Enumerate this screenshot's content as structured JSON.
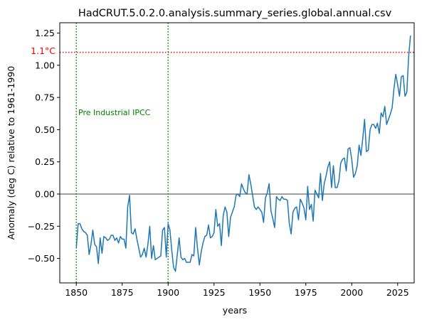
{
  "chart_data": {
    "type": "line",
    "title": "HadCRUT.5.0.2.0.analysis.summary_series.global.annual.csv",
    "xlabel": "years",
    "ylabel": "Anomaly (deg C) relative to 1961-1990",
    "xlim": [
      1841,
      2034
    ],
    "ylim": [
      -0.69,
      1.33
    ],
    "xticks": [
      1850,
      1875,
      1900,
      1925,
      1950,
      1975,
      2000,
      2025
    ],
    "yticks": [
      -0.5,
      -0.25,
      0.0,
      0.25,
      0.5,
      0.75,
      1.0,
      1.25
    ],
    "ytick_labels": [
      "−0.50",
      "−0.25",
      "0.00",
      "0.25",
      "0.50",
      "0.75",
      "1.00",
      "1.25"
    ],
    "grid": false,
    "series": [
      {
        "color": "#1f77b4",
        "x_start": 1850,
        "values": [
          -0.42,
          -0.23,
          -0.23,
          -0.27,
          -0.29,
          -0.3,
          -0.32,
          -0.47,
          -0.39,
          -0.28,
          -0.39,
          -0.41,
          -0.54,
          -0.34,
          -0.46,
          -0.33,
          -0.34,
          -0.36,
          -0.35,
          -0.32,
          -0.32,
          -0.36,
          -0.34,
          -0.38,
          -0.33,
          -0.35,
          -0.35,
          -0.42,
          -0.1,
          -0.01,
          -0.3,
          -0.31,
          -0.27,
          -0.35,
          -0.42,
          -0.49,
          -0.47,
          -0.42,
          -0.49,
          -0.39,
          -0.25,
          -0.5,
          -0.4,
          -0.51,
          -0.5,
          -0.49,
          -0.48,
          -0.28,
          -0.26,
          -0.49,
          -0.23,
          -0.28,
          -0.44,
          -0.57,
          -0.6,
          -0.47,
          -0.34,
          -0.49,
          -0.51,
          -0.5,
          -0.53,
          -0.53,
          -0.53,
          -0.47,
          -0.48,
          -0.26,
          -0.42,
          -0.55,
          -0.45,
          -0.38,
          -0.33,
          -0.32,
          -0.24,
          -0.34,
          -0.33,
          -0.3,
          -0.12,
          -0.25,
          -0.23,
          -0.4,
          -0.17,
          -0.1,
          -0.14,
          -0.33,
          -0.18,
          -0.14,
          -0.1,
          -0.01,
          0.0,
          -0.02,
          0.08,
          0.04,
          0.01,
          0.0,
          0.15,
          0.08,
          -0.01,
          -0.1,
          -0.12,
          -0.1,
          -0.12,
          -0.14,
          -0.22,
          -0.03,
          0.01,
          0.08,
          -0.13,
          -0.19,
          -0.26,
          -0.02,
          -0.04,
          -0.05,
          -0.02,
          -0.04,
          -0.04,
          -0.05,
          -0.23,
          -0.31,
          -0.14,
          -0.11,
          -0.1,
          -0.2,
          -0.04,
          -0.07,
          -0.11,
          -0.2,
          0.06,
          -0.12,
          -0.08,
          -0.21,
          0.03,
          0.0,
          -0.03,
          0.16,
          -0.05,
          0.08,
          0.14,
          0.21,
          0.25,
          0.05,
          0.22,
          0.05,
          0.05,
          0.1,
          0.24,
          0.27,
          0.28,
          0.18,
          0.35,
          0.36,
          0.27,
          0.13,
          0.16,
          0.22,
          0.38,
          0.3,
          0.43,
          0.58,
          0.33,
          0.34,
          0.5,
          0.54,
          0.54,
          0.51,
          0.55,
          0.47,
          0.63,
          0.6,
          0.68,
          0.54,
          0.58,
          0.62,
          0.67,
          0.82,
          0.93,
          0.85,
          0.76,
          0.91,
          0.92,
          0.76,
          0.79,
          1.07,
          1.23
        ]
      }
    ],
    "reference_lines": {
      "zero_color": "#808080",
      "threshold": {
        "value": 1.1,
        "label": "1.1°C",
        "color": "#ff0000"
      },
      "vertical_years": [
        1850,
        1900
      ],
      "vertical_color": "#008000"
    },
    "annotation": {
      "text": "Pre Industrial IPCC",
      "color": "#008000"
    }
  }
}
